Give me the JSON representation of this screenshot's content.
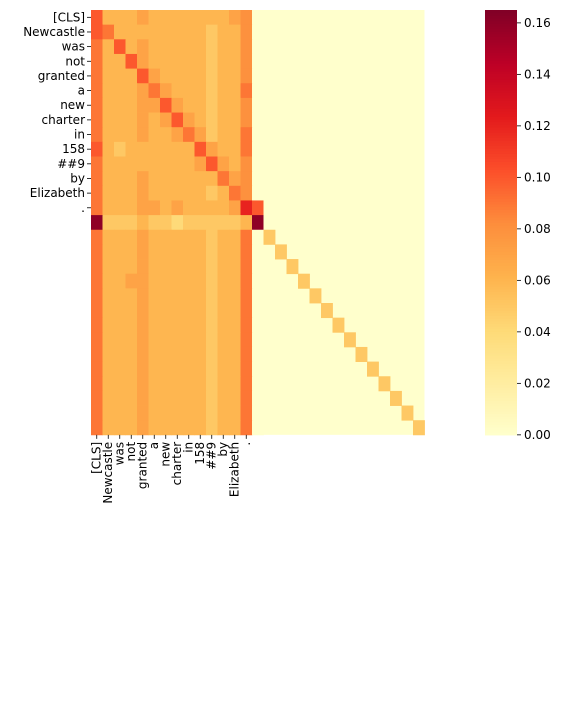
{
  "chart_data": {
    "type": "heatmap",
    "tokens": [
      "[CLS]",
      "Newcastle",
      "was",
      "not",
      "granted",
      "a",
      "new",
      "charter",
      "in",
      "158",
      "##9",
      "by",
      "Elizabeth",
      "."
    ],
    "n_cols": 15,
    "n_rows": 29,
    "row_labels": [
      "[CLS]",
      "Newcastle",
      "was",
      "not",
      "granted",
      "a",
      "new",
      "charter",
      "in",
      "158",
      "##9",
      "by",
      "Elizabeth",
      "."
    ],
    "col_labels": [
      "[CLS]",
      "Newcastle",
      "was",
      "not",
      "granted",
      "a",
      "new",
      "charter",
      "in",
      "158",
      "##9",
      "by",
      "Elizabeth",
      "."
    ],
    "padding_diagonal_value": 0.05,
    "padding_fill_value": 0.0,
    "values": [
      [
        0.1,
        0.06,
        0.06,
        0.06,
        0.07,
        0.06,
        0.06,
        0.06,
        0.06,
        0.06,
        0.06,
        0.06,
        0.07,
        0.08,
        0.0
      ],
      [
        0.1,
        0.09,
        0.06,
        0.06,
        0.06,
        0.06,
        0.06,
        0.06,
        0.06,
        0.06,
        0.05,
        0.06,
        0.06,
        0.08,
        0.0
      ],
      [
        0.09,
        0.06,
        0.1,
        0.06,
        0.07,
        0.06,
        0.06,
        0.06,
        0.06,
        0.06,
        0.05,
        0.06,
        0.06,
        0.08,
        0.0
      ],
      [
        0.09,
        0.06,
        0.06,
        0.1,
        0.07,
        0.06,
        0.06,
        0.06,
        0.06,
        0.06,
        0.05,
        0.06,
        0.06,
        0.08,
        0.0
      ],
      [
        0.09,
        0.06,
        0.06,
        0.06,
        0.1,
        0.07,
        0.06,
        0.06,
        0.06,
        0.06,
        0.05,
        0.06,
        0.06,
        0.08,
        0.0
      ],
      [
        0.09,
        0.06,
        0.06,
        0.06,
        0.07,
        0.09,
        0.07,
        0.06,
        0.06,
        0.06,
        0.05,
        0.06,
        0.06,
        0.09,
        0.0
      ],
      [
        0.09,
        0.06,
        0.06,
        0.06,
        0.07,
        0.07,
        0.1,
        0.07,
        0.06,
        0.06,
        0.05,
        0.06,
        0.06,
        0.08,
        0.0
      ],
      [
        0.09,
        0.06,
        0.06,
        0.06,
        0.07,
        0.06,
        0.07,
        0.1,
        0.07,
        0.06,
        0.05,
        0.06,
        0.06,
        0.08,
        0.0
      ],
      [
        0.09,
        0.06,
        0.06,
        0.06,
        0.07,
        0.06,
        0.06,
        0.07,
        0.09,
        0.07,
        0.05,
        0.06,
        0.06,
        0.09,
        0.0
      ],
      [
        0.1,
        0.06,
        0.05,
        0.06,
        0.06,
        0.06,
        0.06,
        0.06,
        0.06,
        0.1,
        0.07,
        0.06,
        0.06,
        0.09,
        0.0
      ],
      [
        0.09,
        0.06,
        0.06,
        0.06,
        0.06,
        0.06,
        0.06,
        0.06,
        0.06,
        0.07,
        0.1,
        0.07,
        0.06,
        0.08,
        0.0
      ],
      [
        0.09,
        0.06,
        0.06,
        0.06,
        0.07,
        0.06,
        0.06,
        0.06,
        0.06,
        0.06,
        0.06,
        0.09,
        0.07,
        0.08,
        0.0
      ],
      [
        0.09,
        0.06,
        0.06,
        0.06,
        0.07,
        0.06,
        0.06,
        0.06,
        0.06,
        0.06,
        0.05,
        0.06,
        0.09,
        0.08,
        0.0
      ],
      [
        0.09,
        0.06,
        0.06,
        0.06,
        0.07,
        0.07,
        0.06,
        0.07,
        0.06,
        0.06,
        0.06,
        0.06,
        0.07,
        0.12,
        0.1
      ],
      [
        0.16,
        0.05,
        0.05,
        0.05,
        0.06,
        0.05,
        0.05,
        0.04,
        0.05,
        0.05,
        0.05,
        0.05,
        0.05,
        0.06,
        0.16
      ],
      [
        0.09,
        0.06,
        0.06,
        0.06,
        0.07,
        0.06,
        0.06,
        0.06,
        0.06,
        0.06,
        0.05,
        0.06,
        0.06,
        0.09,
        0.0
      ],
      [
        0.09,
        0.06,
        0.06,
        0.06,
        0.07,
        0.06,
        0.06,
        0.06,
        0.06,
        0.06,
        0.05,
        0.06,
        0.06,
        0.09,
        0.0
      ],
      [
        0.09,
        0.06,
        0.06,
        0.06,
        0.07,
        0.06,
        0.06,
        0.06,
        0.06,
        0.06,
        0.05,
        0.06,
        0.06,
        0.09,
        0.0
      ],
      [
        0.09,
        0.06,
        0.06,
        0.07,
        0.07,
        0.06,
        0.06,
        0.06,
        0.06,
        0.06,
        0.05,
        0.06,
        0.06,
        0.09,
        0.0
      ],
      [
        0.09,
        0.06,
        0.06,
        0.06,
        0.07,
        0.06,
        0.06,
        0.06,
        0.06,
        0.06,
        0.05,
        0.06,
        0.06,
        0.09,
        0.0
      ],
      [
        0.09,
        0.06,
        0.06,
        0.06,
        0.07,
        0.06,
        0.06,
        0.06,
        0.06,
        0.06,
        0.05,
        0.06,
        0.06,
        0.09,
        0.0
      ],
      [
        0.09,
        0.06,
        0.06,
        0.06,
        0.07,
        0.06,
        0.06,
        0.06,
        0.06,
        0.06,
        0.05,
        0.06,
        0.06,
        0.09,
        0.0
      ],
      [
        0.09,
        0.06,
        0.06,
        0.06,
        0.07,
        0.06,
        0.06,
        0.06,
        0.06,
        0.06,
        0.05,
        0.06,
        0.06,
        0.09,
        0.0
      ],
      [
        0.09,
        0.06,
        0.06,
        0.06,
        0.07,
        0.06,
        0.06,
        0.06,
        0.06,
        0.06,
        0.05,
        0.06,
        0.06,
        0.09,
        0.0
      ],
      [
        0.09,
        0.06,
        0.06,
        0.06,
        0.07,
        0.06,
        0.06,
        0.06,
        0.06,
        0.06,
        0.05,
        0.06,
        0.06,
        0.09,
        0.0
      ],
      [
        0.09,
        0.06,
        0.06,
        0.06,
        0.07,
        0.06,
        0.06,
        0.06,
        0.06,
        0.06,
        0.05,
        0.06,
        0.06,
        0.09,
        0.0
      ],
      [
        0.09,
        0.06,
        0.06,
        0.06,
        0.07,
        0.06,
        0.06,
        0.06,
        0.06,
        0.06,
        0.05,
        0.06,
        0.06,
        0.09,
        0.0
      ],
      [
        0.09,
        0.06,
        0.06,
        0.06,
        0.07,
        0.06,
        0.06,
        0.06,
        0.06,
        0.06,
        0.05,
        0.06,
        0.06,
        0.09,
        0.0
      ],
      [
        0.09,
        0.06,
        0.06,
        0.06,
        0.07,
        0.06,
        0.06,
        0.06,
        0.06,
        0.06,
        0.05,
        0.06,
        0.06,
        0.09,
        0.0
      ]
    ],
    "colorbar": {
      "colormap": "YlOrRd",
      "vmin": 0.0,
      "vmax": 0.165,
      "ticks": [
        0.0,
        0.02,
        0.04,
        0.06,
        0.08,
        0.1,
        0.12,
        0.14,
        0.16
      ],
      "tick_labels": [
        "0.00",
        "0.02",
        "0.04",
        "0.06",
        "0.08",
        "0.10",
        "0.12",
        "0.14",
        "0.16"
      ]
    },
    "title": "",
    "xlabel": "",
    "ylabel": ""
  }
}
